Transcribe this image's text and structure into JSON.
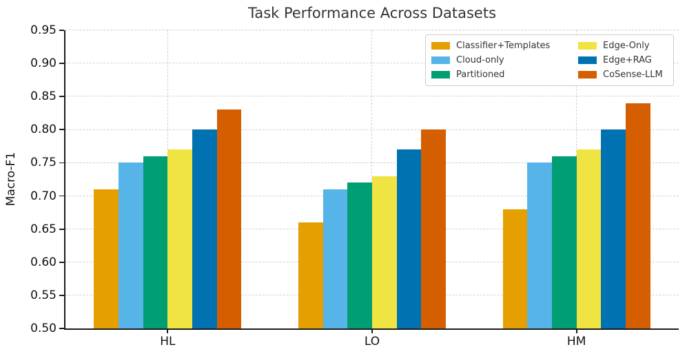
{
  "chart_data": {
    "type": "bar",
    "title": "Task Performance Across Datasets",
    "xlabel": "",
    "ylabel": "Macro-F1",
    "categories": [
      "HL",
      "LO",
      "HM"
    ],
    "series": [
      {
        "name": "Classifier+Templates",
        "color": "#E69F00",
        "values": [
          0.71,
          0.66,
          0.68
        ]
      },
      {
        "name": "Cloud-only",
        "color": "#56B4E9",
        "values": [
          0.75,
          0.71,
          0.75
        ]
      },
      {
        "name": "Partitioned",
        "color": "#009E73",
        "values": [
          0.76,
          0.72,
          0.76
        ]
      },
      {
        "name": "Edge-Only",
        "color": "#F0E442",
        "values": [
          0.77,
          0.73,
          0.77
        ]
      },
      {
        "name": "Edge+RAG",
        "color": "#0072B2",
        "values": [
          0.8,
          0.77,
          0.8
        ]
      },
      {
        "name": "CoSense-LLM",
        "color": "#D55E00",
        "values": [
          0.83,
          0.8,
          0.84
        ]
      }
    ],
    "ylim": [
      0.5,
      0.95
    ],
    "yticks": [
      "0.95",
      "0.90",
      "0.85",
      "0.80",
      "0.75",
      "0.70",
      "0.65",
      "0.60",
      "0.55",
      "0.50"
    ],
    "grid": true,
    "grid_style": "dashed",
    "legend_position": "upper right",
    "legend_columns": 2,
    "colors": {
      "title_text": "#333333",
      "tick_text": "#111111",
      "spine": "#1a1a1a",
      "gridline": "#cfcfcf",
      "background": "#ffffff"
    }
  }
}
